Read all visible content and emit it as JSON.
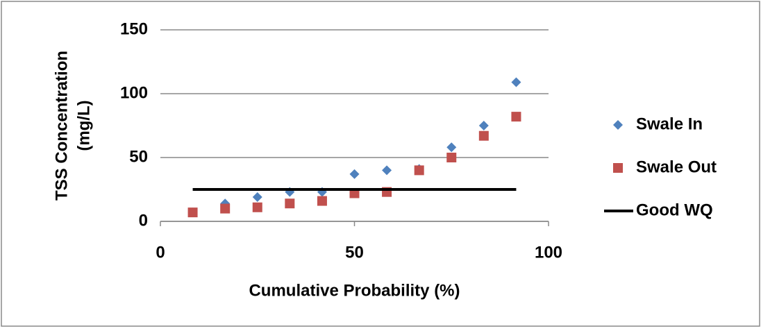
{
  "chart_data": {
    "type": "scatter",
    "xlabel": "Cumulative Probability (%)",
    "ylabel": [
      "TSS Concentration",
      "(mg/L)"
    ],
    "xlim": [
      0,
      100
    ],
    "xticks": [
      0,
      50,
      100
    ],
    "ylim": [
      0,
      150
    ],
    "yticks": [
      0,
      50,
      100,
      150
    ],
    "grid": true,
    "legend": "right",
    "series": [
      {
        "name": "Swale In",
        "color": "#4f81bd",
        "marker": "diamond",
        "x": [
          8.33,
          16.67,
          25,
          33.33,
          41.67,
          50,
          58.33,
          66.67,
          75,
          83.33,
          91.67
        ],
        "values": [
          7,
          14,
          19,
          23,
          23,
          37,
          40,
          41,
          58,
          75,
          109
        ]
      },
      {
        "name": "Swale Out",
        "color": "#c0504d",
        "marker": "square",
        "x": [
          8.33,
          16.67,
          25,
          33.33,
          41.67,
          50,
          58.33,
          66.67,
          75,
          83.33,
          91.67
        ],
        "values": [
          7,
          10,
          11,
          14,
          16,
          22,
          23,
          40,
          50,
          67,
          82
        ]
      },
      {
        "name": "Good WQ",
        "color": "#000000",
        "marker": "line",
        "x": [
          8.33,
          91.67
        ],
        "values": [
          25,
          25
        ]
      }
    ]
  }
}
